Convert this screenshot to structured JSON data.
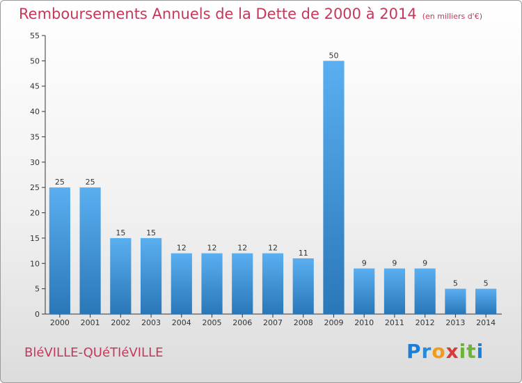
{
  "title": "Remboursements Annuels de la Dette de 2000 à 2014",
  "subtitle": "(en milliers d'€)",
  "commune": "BléVILLE-QUéTIéVILLE",
  "logo": {
    "text": "Proxiti",
    "letters": [
      "P",
      "r",
      "o",
      "x",
      "i",
      "t",
      "i"
    ],
    "colors": [
      "#1a7fd8",
      "#2a8ad8",
      "#f29a1a",
      "#d83a3a",
      "#6bb536",
      "#6bb536",
      "#1a7fd8"
    ]
  },
  "colors": {
    "bar_light": "#5aaff0",
    "bar_dark": "#2a77b8",
    "title": "#c4385a"
  },
  "chart_data": {
    "type": "bar",
    "title": "Remboursements Annuels de la Dette de 2000 à 2014",
    "subtitle": "(en milliers d'€)",
    "xlabel": "",
    "ylabel": "",
    "categories": [
      "2000",
      "2001",
      "2002",
      "2003",
      "2004",
      "2005",
      "2006",
      "2007",
      "2008",
      "2009",
      "2010",
      "2011",
      "2012",
      "2013",
      "2014"
    ],
    "values": [
      25,
      25,
      15,
      15,
      12,
      12,
      12,
      12,
      11,
      50,
      9,
      9,
      9,
      5,
      5
    ],
    "ylim": [
      0,
      55
    ],
    "yticks": [
      0,
      5,
      10,
      15,
      20,
      25,
      30,
      35,
      40,
      45,
      50,
      55
    ],
    "grid": false,
    "data_labels": true
  }
}
